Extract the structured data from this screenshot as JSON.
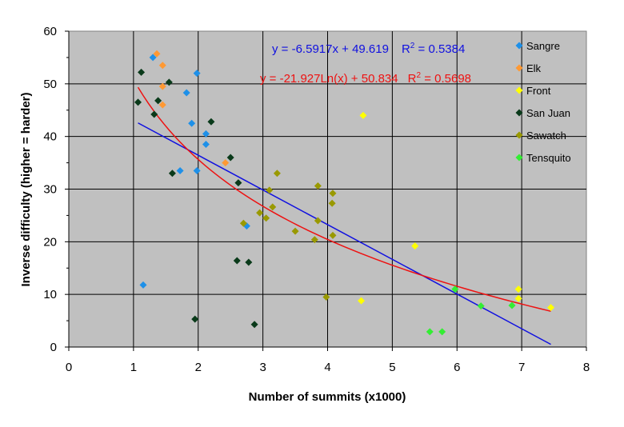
{
  "chart_data": {
    "type": "scatter",
    "xlabel": "Number of summits (x1000)",
    "ylabel": "Inverse difficulty (higher = harder)",
    "xlim": [
      0,
      8
    ],
    "ylim": [
      0,
      60
    ],
    "xticks": [
      "0",
      "1",
      "2",
      "3",
      "4",
      "5",
      "6",
      "7",
      "8"
    ],
    "yticks": [
      "0",
      "10",
      "20",
      "30",
      "40",
      "50",
      "60"
    ],
    "grid": true,
    "plot_background": "#c0c0c0",
    "legend_position": "right",
    "series": [
      {
        "name": "Sangre",
        "color": "#1e90e8",
        "points": [
          [
            1.3,
            55
          ],
          [
            1.98,
            52
          ],
          [
            1.82,
            48.3
          ],
          [
            1.9,
            42.5
          ],
          [
            2.12,
            40.5
          ],
          [
            2.12,
            38.5
          ],
          [
            1.72,
            33.5
          ],
          [
            1.98,
            33.5
          ],
          [
            2.75,
            23
          ],
          [
            1.15,
            11.8
          ]
        ]
      },
      {
        "name": "Elk",
        "color": "#ff9933",
        "points": [
          [
            1.36,
            55.7
          ],
          [
            1.45,
            53.5
          ],
          [
            1.45,
            49.5
          ],
          [
            1.45,
            46
          ],
          [
            2.42,
            35
          ]
        ]
      },
      {
        "name": "Front",
        "color": "#ffff00",
        "points": [
          [
            4.55,
            44
          ],
          [
            5.35,
            19.2
          ],
          [
            4.52,
            8.8
          ],
          [
            6.95,
            11
          ],
          [
            6.95,
            9.2
          ],
          [
            7.45,
            7.5
          ]
        ]
      },
      {
        "name": "San Juan",
        "color": "#0a3a1a",
        "points": [
          [
            1.12,
            52.2
          ],
          [
            1.07,
            46.5
          ],
          [
            1.38,
            46.8
          ],
          [
            1.55,
            50.3
          ],
          [
            1.32,
            44.2
          ],
          [
            2.2,
            42.8
          ],
          [
            1.6,
            33
          ],
          [
            2.5,
            36
          ],
          [
            2.62,
            31.2
          ],
          [
            2.6,
            16.4
          ],
          [
            2.78,
            16.1
          ],
          [
            1.95,
            5.3
          ],
          [
            2.87,
            4.3
          ]
        ]
      },
      {
        "name": "Sawatch",
        "color": "#999900",
        "points": [
          [
            3.22,
            33
          ],
          [
            3.1,
            29.8
          ],
          [
            3.85,
            30.6
          ],
          [
            4.08,
            29.2
          ],
          [
            4.07,
            27.3
          ],
          [
            3.15,
            26.6
          ],
          [
            2.95,
            25.5
          ],
          [
            3.05,
            24.5
          ],
          [
            2.7,
            23.5
          ],
          [
            3.5,
            22
          ],
          [
            3.85,
            24
          ],
          [
            3.8,
            20.4
          ],
          [
            4.08,
            21.2
          ],
          [
            3.98,
            9.5
          ]
        ]
      },
      {
        "name": "Tensquito",
        "color": "#33ee33",
        "points": [
          [
            5.97,
            11
          ],
          [
            6.37,
            7.8
          ],
          [
            6.85,
            7.9
          ],
          [
            5.58,
            2.9
          ],
          [
            5.77,
            2.9
          ]
        ]
      }
    ],
    "trendlines": [
      {
        "type": "linear",
        "color": "#1010e0",
        "equation": "y = -6.5917x + 49.619",
        "r2_prefix": "R",
        "r2_sup": "2",
        "r2_value": " = 0.5384",
        "slope": -6.5917,
        "intercept": 49.619,
        "x_range": [
          1.07,
          7.45
        ]
      },
      {
        "type": "logarithmic",
        "color": "#ee1111",
        "equation": "y = -21.927Ln(x) + 50.834",
        "r2_prefix": "R",
        "r2_sup": "2",
        "r2_value": " = 0.5698",
        "a": -21.927,
        "b": 50.834,
        "x_range": [
          1.07,
          7.45
        ]
      }
    ]
  }
}
